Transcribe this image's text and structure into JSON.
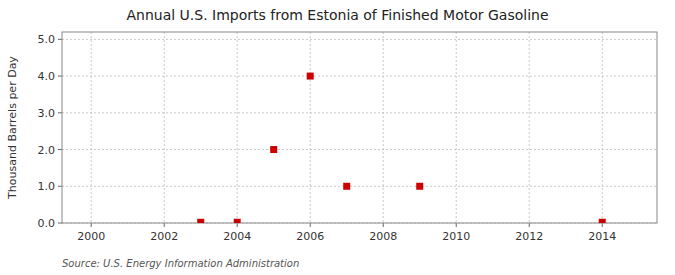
{
  "chart_data": {
    "type": "scatter",
    "title": "Annual U.S. Imports from Estonia of Finished Motor Gasoline",
    "ylabel": "Thousand Barrels per Day",
    "source": "Source: U.S. Energy Information Administration",
    "x": [
      2003,
      2004,
      2005,
      2006,
      2007,
      2009,
      2014
    ],
    "values": [
      0.02,
      0.02,
      2.0,
      4.0,
      1.0,
      1.0,
      0.02
    ],
    "color": "#CC0000",
    "marker": "square",
    "xlim": [
      1999.2,
      2015.5
    ],
    "ylim": [
      0.0,
      5.2
    ],
    "xticks": [
      2000,
      2002,
      2004,
      2006,
      2008,
      2010,
      2012,
      2014
    ],
    "yticks": [
      {
        "value": 0.0,
        "label": "0.0"
      },
      {
        "value": 1.0,
        "label": "1.0"
      },
      {
        "value": 2.0,
        "label": "2.0"
      },
      {
        "value": 3.0,
        "label": "3.0"
      },
      {
        "value": 4.0,
        "label": "4.0"
      },
      {
        "value": 5.0,
        "label": "5.0"
      }
    ],
    "grid": true
  }
}
